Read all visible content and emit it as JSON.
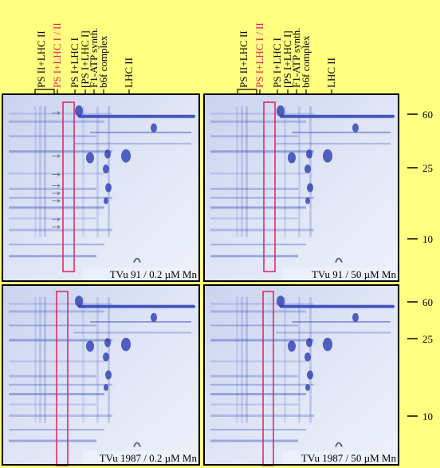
{
  "left_lane_labels": [
    "PS II+LHC II",
    "PS I+LHC I / II",
    "PS I+LHC I",
    "[PS I+LHC I]",
    "F1-ATP synth.",
    "b6f complex",
    "LHC II"
  ],
  "right_lane_labels": [
    "PS II+LHC II",
    "PS I+LHC I / II",
    "PS I+LHC I",
    "[PS I+LHC I]",
    "F1-ATP synth.",
    "b6f complex",
    "LHC II"
  ],
  "panels": [
    {
      "caption": "TVu 91 / 0.2 µM Mn"
    },
    {
      "caption": "TVu 91 / 50 µM Mn"
    },
    {
      "caption": "TVu 1987 / 0.2 µM Mn"
    },
    {
      "caption": "TVu 1987 / 50 µM Mn"
    }
  ],
  "markers": [
    [
      60,
      25,
      10
    ],
    [
      60,
      25,
      10
    ]
  ]
}
